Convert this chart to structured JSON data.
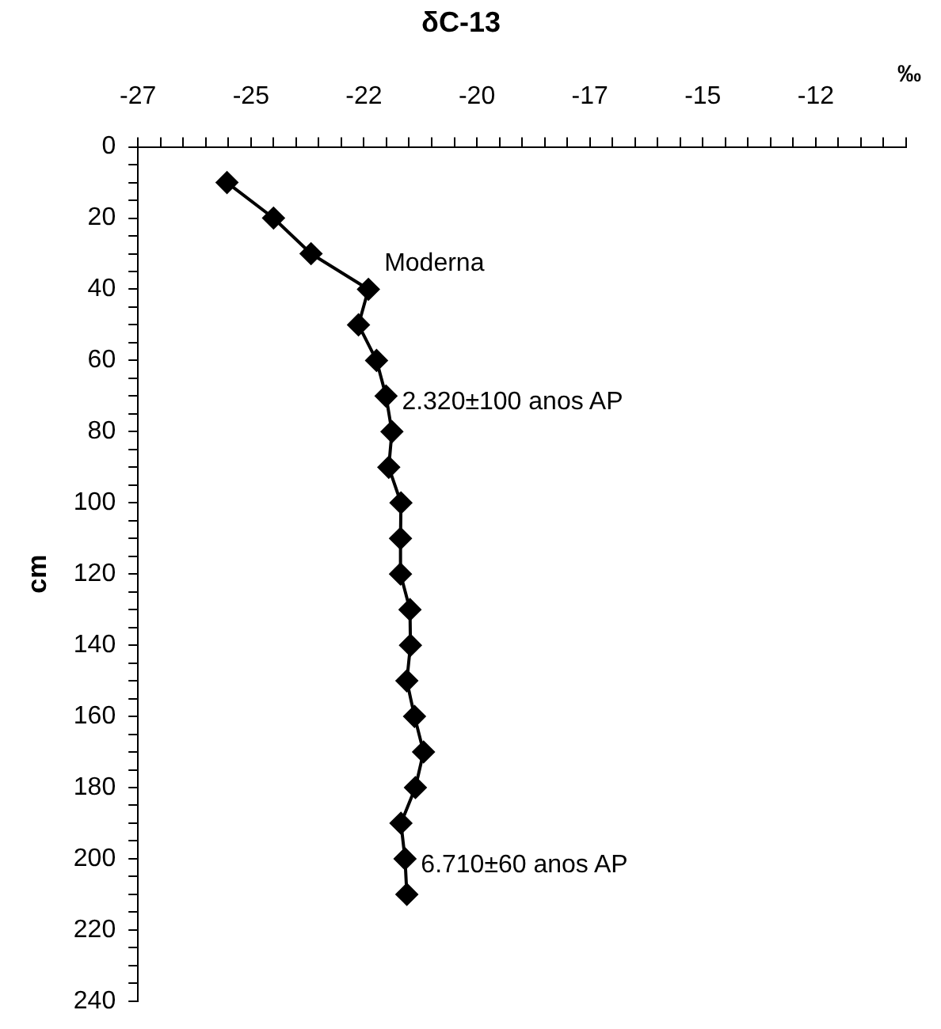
{
  "chart_data": {
    "type": "line",
    "title": "δC-13",
    "xlabel": "‰",
    "ylabel": "cm",
    "marker": "diamond",
    "line_style": "solid",
    "grid": false,
    "legend": false,
    "x": [
      -25.03,
      -24.0,
      -23.17,
      -21.9,
      -22.12,
      -21.72,
      -21.51,
      -21.38,
      -21.45,
      -21.18,
      -21.19,
      -21.19,
      -20.98,
      -20.97,
      -21.05,
      -20.88,
      -20.68,
      -20.86,
      -21.18,
      -21.09,
      -21.05
    ],
    "series": [
      {
        "color": "#000000",
        "values": [
          10,
          20,
          30,
          40,
          50,
          60,
          70,
          80,
          90,
          100,
          110,
          120,
          130,
          140,
          150,
          160,
          170,
          180,
          190,
          200,
          210
        ]
      }
    ],
    "xlim": [
      -27,
      -10
    ],
    "xticks": [
      -27,
      {
        "value": -24.5,
        "label": "-25"
      },
      -22,
      {
        "value": -19.5,
        "label": "-20"
      },
      -17,
      {
        "value": -14.5,
        "label": "-15"
      },
      -12,
      {
        "value": -26.5,
        "label": null
      },
      {
        "value": -26,
        "label": null
      },
      {
        "value": -25.5,
        "label": null
      },
      {
        "value": -25,
        "label": null
      },
      {
        "value": -24,
        "label": null
      },
      {
        "value": -23.5,
        "label": null
      },
      {
        "value": -23,
        "label": null
      },
      {
        "value": -22.5,
        "label": null
      },
      {
        "value": -21.5,
        "label": null
      },
      {
        "value": -21,
        "label": null
      },
      {
        "value": -20.5,
        "label": null
      },
      {
        "value": -20,
        "label": null
      },
      {
        "value": -19,
        "label": null
      },
      {
        "value": -18.5,
        "label": null
      },
      {
        "value": -18,
        "label": null
      },
      {
        "value": -17.5,
        "label": null
      },
      {
        "value": -16.5,
        "label": null
      },
      {
        "value": -16,
        "label": null
      },
      {
        "value": -15.5,
        "label": null
      },
      {
        "value": -15,
        "label": null
      },
      {
        "value": -14,
        "label": null
      },
      {
        "value": -13.5,
        "label": null
      },
      {
        "value": -13,
        "label": null
      },
      {
        "value": -12.5,
        "label": null
      },
      {
        "value": -11.5,
        "label": null
      },
      {
        "value": -11,
        "label": null
      },
      {
        "value": -10.5,
        "label": null
      },
      {
        "value": -10,
        "label": null
      }
    ],
    "ylim": [
      240,
      0
    ],
    "yticks": [
      0,
      20,
      40,
      60,
      80,
      100,
      120,
      140,
      160,
      180,
      200,
      220,
      240,
      {
        "value": 5,
        "label": null
      },
      {
        "value": 10,
        "label": null
      },
      {
        "value": 15,
        "label": null
      },
      {
        "value": 25,
        "label": null
      },
      {
        "value": 30,
        "label": null
      },
      {
        "value": 35,
        "label": null
      },
      {
        "value": 45,
        "label": null
      },
      {
        "value": 50,
        "label": null
      },
      {
        "value": 55,
        "label": null
      },
      {
        "value": 65,
        "label": null
      },
      {
        "value": 70,
        "label": null
      },
      {
        "value": 75,
        "label": null
      },
      {
        "value": 85,
        "label": null
      },
      {
        "value": 90,
        "label": null
      },
      {
        "value": 95,
        "label": null
      },
      {
        "value": 105,
        "label": null
      },
      {
        "value": 110,
        "label": null
      },
      {
        "value": 115,
        "label": null
      },
      {
        "value": 125,
        "label": null
      },
      {
        "value": 130,
        "label": null
      },
      {
        "value": 135,
        "label": null
      },
      {
        "value": 145,
        "label": null
      },
      {
        "value": 150,
        "label": null
      },
      {
        "value": 155,
        "label": null
      },
      {
        "value": 165,
        "label": null
      },
      {
        "value": 170,
        "label": null
      },
      {
        "value": 175,
        "label": null
      },
      {
        "value": 185,
        "label": null
      },
      {
        "value": 190,
        "label": null
      },
      {
        "value": 195,
        "label": null
      },
      {
        "value": 205,
        "label": null
      },
      {
        "value": 210,
        "label": null
      },
      {
        "value": 215,
        "label": null
      },
      {
        "value": 225,
        "label": null
      },
      {
        "value": 230,
        "label": null
      },
      {
        "value": 235,
        "label": null
      }
    ],
    "annotations": [
      {
        "text": "Moderna",
        "x": -21.9,
        "y": 40
      },
      {
        "text": "2.320±100 anos AP",
        "x": -21.51,
        "y": 70
      },
      {
        "text": "6.710±60 anos AP",
        "x": -21.09,
        "y": 200
      }
    ]
  }
}
